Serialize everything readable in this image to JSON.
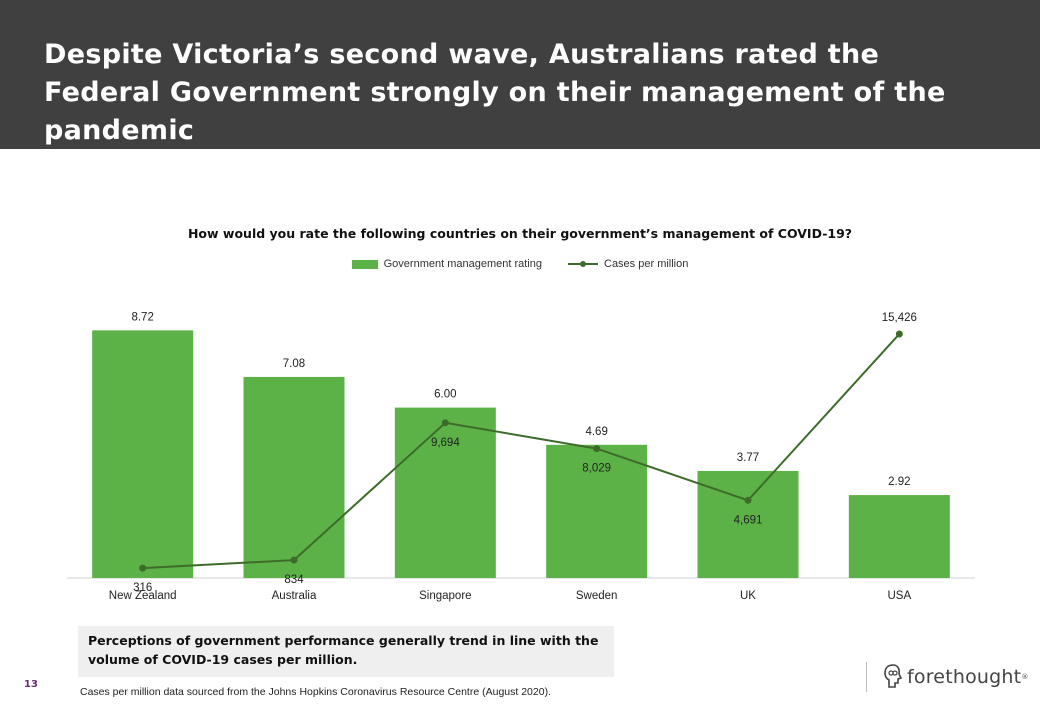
{
  "slide": {
    "title": "Despite Victoria’s second wave, Australians rated the Federal Government strongly on their management of the pandemic",
    "page_number": "13",
    "callout": "Perceptions of government performance generally trend in line with the volume of COVID-19 cases per million.",
    "source": "Cases per million data sourced from the Johns Hopkins Coronavirus Resource Centre (August 2020).",
    "logo": {
      "text": "forethought",
      "mark": "®"
    },
    "colors": {
      "header_bg": "#404040",
      "bar": "#5cb247",
      "line": "#3d6b2a",
      "page_number": "#6a2c73",
      "callout_bg": "#efefef"
    }
  },
  "chart_data": {
    "type": "bar",
    "title": "How would you rate the following countries on their government’s management of COVID-19?",
    "categories": [
      "New Zealand",
      "Australia",
      "Singapore",
      "Sweden",
      "UK",
      "USA"
    ],
    "series": [
      {
        "name": "Government management rating",
        "type": "bar",
        "values": [
          8.72,
          7.08,
          6.0,
          4.69,
          3.77,
          2.92
        ],
        "labels": [
          "8.72",
          "7.08",
          "6.00",
          "4.69",
          "3.77",
          "2.92"
        ],
        "color": "#5cb247"
      },
      {
        "name": "Cases per million",
        "type": "line",
        "values": [
          316,
          834,
          9694,
          8029,
          4691,
          15426
        ],
        "labels": [
          "316",
          "834",
          "9,694",
          "8,029",
          "4,691",
          "15,426"
        ],
        "color": "#3d6b2a"
      }
    ],
    "ylim_bars": [
      0,
      10
    ],
    "ylim_line": [
      0,
      16500
    ],
    "legend_position": "top",
    "grid": false
  }
}
